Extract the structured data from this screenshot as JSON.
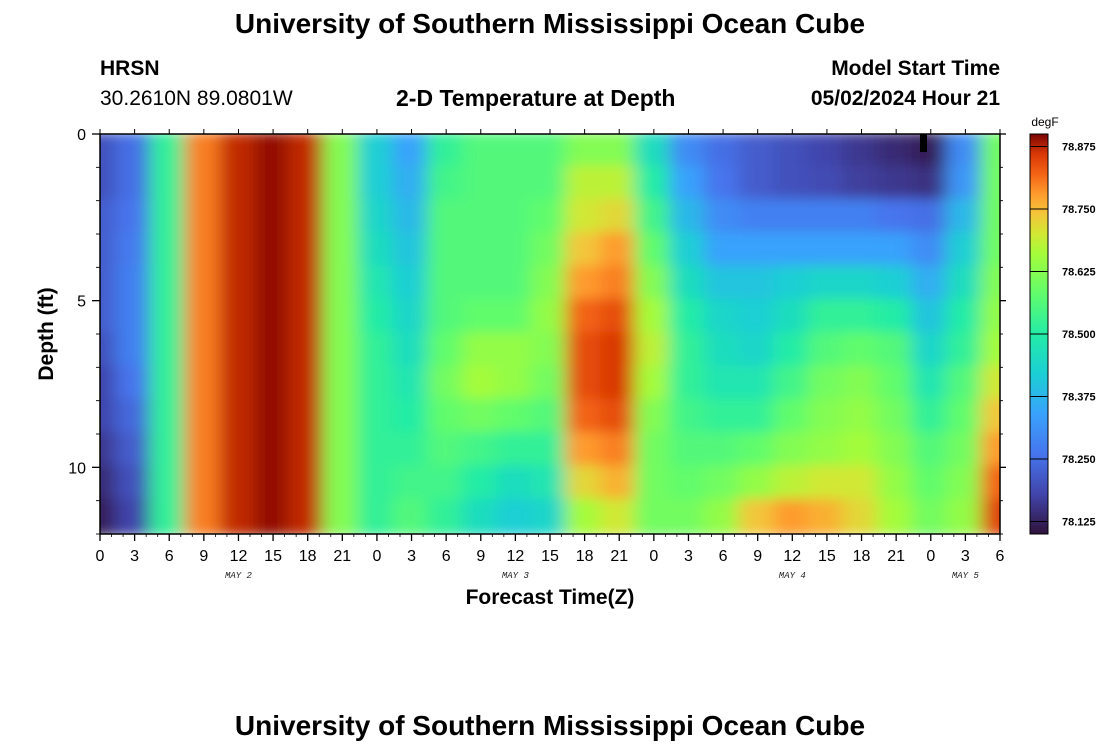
{
  "header": {
    "title": "University of Southern Mississippi Ocean Cube",
    "station": "HRSN",
    "coords": "30.2610N  89.0801W",
    "subtitle": "2-D Temperature at Depth",
    "model_label": "Model Start Time",
    "model_time": "05/02/2024 Hour 21"
  },
  "footer": {
    "title": "University of Southern Mississippi Ocean Cube"
  },
  "chart_data": {
    "type": "heatmap",
    "xlabel": "Forecast Time(Z)",
    "ylabel": "Depth (ft)",
    "x_tick_labels": [
      "0",
      "3",
      "6",
      "9",
      "12",
      "15",
      "18",
      "21",
      "0",
      "3",
      "6",
      "9",
      "12",
      "15",
      "18",
      "21",
      "0",
      "3",
      "6",
      "9",
      "12",
      "15",
      "18",
      "21",
      "0",
      "3",
      "6"
    ],
    "date_labels": [
      {
        "text": "MAY 2",
        "hour": 12
      },
      {
        "text": "MAY 3",
        "hour": 36
      },
      {
        "text": "MAY 4",
        "hour": 60
      },
      {
        "text": "MAY 5",
        "hour": 75
      }
    ],
    "xlim_hours": [
      0,
      78
    ],
    "y_ticks": [
      0,
      5,
      10
    ],
    "ylim": [
      0,
      12
    ],
    "colorbar": {
      "unit": "degF",
      "min": 78.1,
      "max": 78.9,
      "ticks": [
        "78.125",
        "78.250",
        "78.375",
        "78.500",
        "78.625",
        "78.750",
        "78.875"
      ],
      "colormap": "turbo"
    },
    "depth_bins_ft": [
      0,
      1,
      2,
      3,
      4,
      5,
      6,
      7,
      8,
      9,
      10,
      11
    ],
    "time_bins_hours": [
      0,
      3,
      6,
      9,
      12,
      15,
      18,
      21,
      24,
      27,
      30,
      33,
      36,
      39,
      42,
      45,
      48,
      51,
      54,
      57,
      60,
      63,
      66,
      69,
      72,
      75,
      78
    ],
    "values_degF": [
      [
        78.2,
        78.25,
        78.52,
        78.8,
        78.87,
        78.89,
        78.87,
        78.62,
        78.42,
        78.34,
        78.52,
        78.56,
        78.56,
        78.56,
        78.62,
        78.62,
        78.46,
        78.3,
        78.25,
        78.22,
        78.2,
        78.18,
        78.16,
        78.14,
        78.12,
        78.3,
        78.6
      ],
      [
        78.2,
        78.25,
        78.52,
        78.8,
        78.87,
        78.89,
        78.87,
        78.62,
        78.42,
        78.36,
        78.54,
        78.56,
        78.56,
        78.56,
        78.68,
        78.68,
        78.5,
        78.34,
        78.26,
        78.22,
        78.2,
        78.19,
        78.17,
        78.16,
        78.15,
        78.32,
        78.6
      ],
      [
        78.22,
        78.26,
        78.52,
        78.8,
        78.87,
        78.89,
        78.87,
        78.62,
        78.44,
        78.38,
        78.56,
        78.56,
        78.56,
        78.58,
        78.7,
        78.72,
        78.54,
        78.38,
        78.3,
        78.28,
        78.28,
        78.28,
        78.28,
        78.26,
        78.25,
        78.38,
        78.6
      ],
      [
        78.22,
        78.27,
        78.52,
        78.8,
        78.87,
        78.89,
        78.87,
        78.62,
        78.46,
        78.4,
        78.56,
        78.56,
        78.56,
        78.6,
        78.74,
        78.78,
        78.58,
        78.42,
        78.34,
        78.34,
        78.34,
        78.34,
        78.34,
        78.34,
        78.3,
        78.42,
        78.6
      ],
      [
        78.22,
        78.28,
        78.52,
        78.8,
        78.87,
        78.89,
        78.87,
        78.62,
        78.48,
        78.42,
        78.56,
        78.56,
        78.56,
        78.62,
        78.78,
        78.8,
        78.62,
        78.46,
        78.4,
        78.4,
        78.42,
        78.44,
        78.44,
        78.42,
        78.36,
        78.46,
        78.62
      ],
      [
        78.22,
        78.28,
        78.52,
        78.8,
        78.87,
        78.89,
        78.87,
        78.62,
        78.5,
        78.44,
        78.56,
        78.58,
        78.58,
        78.64,
        78.82,
        78.84,
        78.66,
        78.5,
        78.44,
        78.42,
        78.46,
        78.52,
        78.52,
        78.5,
        78.4,
        78.5,
        78.64
      ],
      [
        78.2,
        78.28,
        78.52,
        78.8,
        78.87,
        78.89,
        78.87,
        78.62,
        78.52,
        78.46,
        78.58,
        78.64,
        78.64,
        78.62,
        78.84,
        78.86,
        78.68,
        78.52,
        78.46,
        78.44,
        78.5,
        78.56,
        78.58,
        78.56,
        78.44,
        78.52,
        78.66
      ],
      [
        78.18,
        78.26,
        78.52,
        78.8,
        78.87,
        78.89,
        78.87,
        78.62,
        78.52,
        78.48,
        78.6,
        78.66,
        78.64,
        78.6,
        78.84,
        78.86,
        78.66,
        78.52,
        78.48,
        78.48,
        78.54,
        78.6,
        78.62,
        78.58,
        78.48,
        78.56,
        78.7
      ],
      [
        78.18,
        78.24,
        78.52,
        78.8,
        78.87,
        78.89,
        78.87,
        78.62,
        78.52,
        78.5,
        78.58,
        78.6,
        78.58,
        78.56,
        78.82,
        78.84,
        78.62,
        78.54,
        78.52,
        78.52,
        78.58,
        78.62,
        78.64,
        78.6,
        78.52,
        78.58,
        78.74
      ],
      [
        78.16,
        78.22,
        78.52,
        78.8,
        78.87,
        78.89,
        78.87,
        78.62,
        78.52,
        78.52,
        78.56,
        78.54,
        78.52,
        78.52,
        78.78,
        78.8,
        78.6,
        78.56,
        78.56,
        78.58,
        78.62,
        78.64,
        78.66,
        78.62,
        78.56,
        78.6,
        78.78
      ],
      [
        78.14,
        78.2,
        78.52,
        78.8,
        78.87,
        78.89,
        78.87,
        78.62,
        78.52,
        78.54,
        78.54,
        78.5,
        78.46,
        78.48,
        78.72,
        78.76,
        78.6,
        78.58,
        78.6,
        78.64,
        78.68,
        78.7,
        78.7,
        78.64,
        78.58,
        78.62,
        78.82
      ],
      [
        78.12,
        78.18,
        78.52,
        78.8,
        78.87,
        78.89,
        78.87,
        78.62,
        78.52,
        78.56,
        78.52,
        78.46,
        78.42,
        78.44,
        78.66,
        78.7,
        78.6,
        78.6,
        78.64,
        78.74,
        78.78,
        78.76,
        78.72,
        78.66,
        78.6,
        78.64,
        78.85
      ]
    ]
  }
}
